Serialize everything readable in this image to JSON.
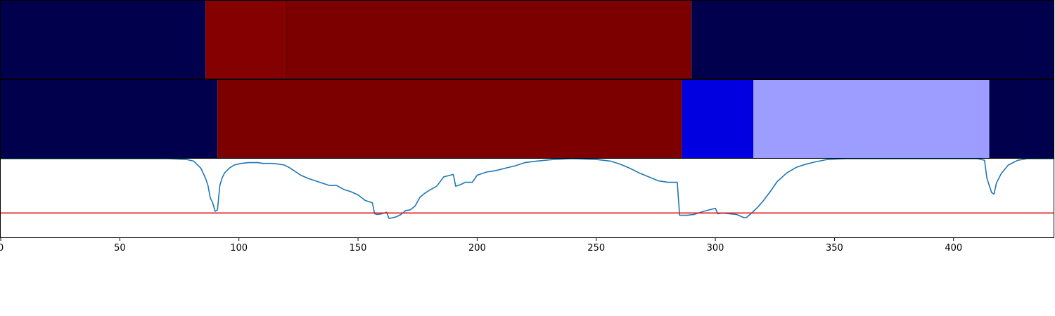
{
  "chart_data": {
    "type": "heatmap",
    "xlim": [
      0,
      442
    ],
    "x_ticks": [
      0,
      50,
      100,
      150,
      200,
      250,
      300,
      350,
      400
    ],
    "x_tick_labels": [
      "0",
      "50",
      "100",
      "150",
      "200",
      "250",
      "300",
      "350",
      "400"
    ],
    "grid": false,
    "legend": "none",
    "tracks": [
      {
        "segments": [
          {
            "start": 0,
            "end": 86,
            "color": "#00004c"
          },
          {
            "start": 86,
            "end": 119,
            "color": "#850000"
          },
          {
            "start": 119,
            "end": 290,
            "color": "#7c0000"
          },
          {
            "start": 290,
            "end": 442,
            "color": "#00004c"
          }
        ]
      },
      {
        "segments": [
          {
            "start": 0,
            "end": 91,
            "color": "#00004c"
          },
          {
            "start": 91,
            "end": 286,
            "color": "#7c0000"
          },
          {
            "start": 286,
            "end": 316,
            "color": "#0000e0"
          },
          {
            "start": 316,
            "end": 415,
            "color": "#9d9dff"
          },
          {
            "start": 415,
            "end": 442,
            "color": "#00004c"
          }
        ]
      }
    ],
    "line_panel": {
      "ylim": [
        0,
        1
      ],
      "threshold": 0.31,
      "threshold_color": "#e41a1c",
      "line_color": "#1f77b4",
      "points": [
        [
          0,
          1.0
        ],
        [
          70,
          1.0
        ],
        [
          78,
          0.99
        ],
        [
          81,
          0.97
        ],
        [
          84,
          0.88
        ],
        [
          86,
          0.75
        ],
        [
          87,
          0.66
        ],
        [
          88,
          0.5
        ],
        [
          89,
          0.44
        ],
        [
          90,
          0.33
        ],
        [
          91,
          0.35
        ],
        [
          92,
          0.66
        ],
        [
          93,
          0.76
        ],
        [
          94,
          0.82
        ],
        [
          96,
          0.88
        ],
        [
          98,
          0.92
        ],
        [
          101,
          0.94
        ],
        [
          104,
          0.95
        ],
        [
          108,
          0.95
        ],
        [
          110,
          0.94
        ],
        [
          114,
          0.94
        ],
        [
          117,
          0.93
        ],
        [
          119,
          0.92
        ],
        [
          121,
          0.89
        ],
        [
          123,
          0.85
        ],
        [
          126,
          0.79
        ],
        [
          129,
          0.75
        ],
        [
          132,
          0.72
        ],
        [
          135,
          0.69
        ],
        [
          138,
          0.66
        ],
        [
          141,
          0.66
        ],
        [
          144,
          0.61
        ],
        [
          147,
          0.58
        ],
        [
          150,
          0.54
        ],
        [
          153,
          0.47
        ],
        [
          155,
          0.45
        ],
        [
          156,
          0.44
        ],
        [
          157,
          0.3
        ],
        [
          158,
          0.29
        ],
        [
          160,
          0.3
        ],
        [
          162,
          0.32
        ],
        [
          163,
          0.24
        ],
        [
          166,
          0.26
        ],
        [
          168,
          0.29
        ],
        [
          170,
          0.34
        ],
        [
          172,
          0.35
        ],
        [
          174,
          0.4
        ],
        [
          176,
          0.51
        ],
        [
          178,
          0.56
        ],
        [
          180,
          0.6
        ],
        [
          183,
          0.65
        ],
        [
          186,
          0.77
        ],
        [
          190,
          0.8
        ],
        [
          191,
          0.65
        ],
        [
          193,
          0.67
        ],
        [
          195,
          0.7
        ],
        [
          198,
          0.7
        ],
        [
          200,
          0.79
        ],
        [
          204,
          0.83
        ],
        [
          208,
          0.85
        ],
        [
          212,
          0.88
        ],
        [
          216,
          0.91
        ],
        [
          220,
          0.95
        ],
        [
          225,
          0.97
        ],
        [
          232,
          0.99
        ],
        [
          240,
          1.0
        ],
        [
          250,
          0.99
        ],
        [
          256,
          0.97
        ],
        [
          260,
          0.93
        ],
        [
          264,
          0.88
        ],
        [
          268,
          0.82
        ],
        [
          272,
          0.77
        ],
        [
          276,
          0.72
        ],
        [
          280,
          0.7
        ],
        [
          284,
          0.7
        ],
        [
          285,
          0.28
        ],
        [
          288,
          0.28
        ],
        [
          291,
          0.29
        ],
        [
          295,
          0.33
        ],
        [
          300,
          0.37
        ],
        [
          301,
          0.3
        ],
        [
          303,
          0.31
        ],
        [
          306,
          0.3
        ],
        [
          309,
          0.29
        ],
        [
          312,
          0.25
        ],
        [
          313,
          0.25
        ],
        [
          316,
          0.33
        ],
        [
          318,
          0.39
        ],
        [
          320,
          0.46
        ],
        [
          323,
          0.58
        ],
        [
          326,
          0.71
        ],
        [
          330,
          0.82
        ],
        [
          334,
          0.89
        ],
        [
          338,
          0.93
        ],
        [
          342,
          0.96
        ],
        [
          347,
          0.99
        ],
        [
          355,
          1.0
        ],
        [
          410,
          1.0
        ],
        [
          413,
          0.98
        ],
        [
          414,
          0.75
        ],
        [
          416,
          0.57
        ],
        [
          417,
          0.55
        ],
        [
          418,
          0.69
        ],
        [
          420,
          0.81
        ],
        [
          423,
          0.92
        ],
        [
          427,
          0.98
        ],
        [
          431,
          1.0
        ],
        [
          442,
          1.0
        ]
      ]
    }
  }
}
